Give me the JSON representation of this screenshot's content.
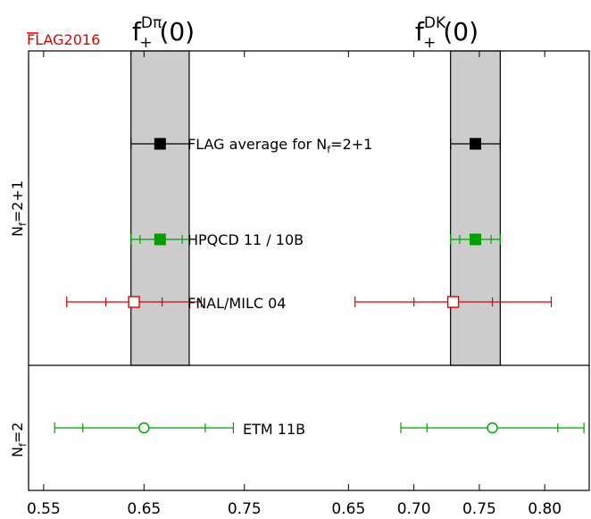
{
  "flag_tag": "FLAG2016",
  "chart_data": [
    {
      "type": "scatter",
      "title": "f+Dπ(0)",
      "title_parts": {
        "main": "f",
        "sup": "Dπ",
        "sub": "+",
        "arg": "(0)"
      },
      "xlim": [
        0.535,
        0.8
      ],
      "x_ticks": [
        0.55,
        0.65,
        0.75
      ],
      "x_tick_labels": [
        "0.55",
        "0.65",
        "0.75"
      ],
      "band": {
        "center": 0.666,
        "low": 0.637,
        "high": 0.695,
        "color": "#cccccc"
      },
      "series": [
        {
          "name": "FLAG average for Nf=2+1",
          "group": "Nf=2+1",
          "x": 0.666,
          "stat_err": [
            0.637,
            0.695
          ],
          "tot_err": [
            0.637,
            0.695
          ],
          "marker": "filled-square",
          "color": "#000000"
        },
        {
          "name": "HPQCD 11 / 10B",
          "group": "Nf=2+1",
          "x": 0.666,
          "stat_err": [
            0.646,
            0.688
          ],
          "tot_err": [
            0.637,
            0.695
          ],
          "marker": "filled-square",
          "color": "#00a000"
        },
        {
          "name": "FNAL/MILC 04",
          "group": "Nf=2+1",
          "x": 0.64,
          "stat_err": [
            0.612,
            0.668
          ],
          "tot_err": [
            0.573,
            0.707
          ],
          "marker": "open-square",
          "color": "#e00000"
        },
        {
          "name": "ETM 11B",
          "group": "Nf=2",
          "x": 0.65,
          "stat_err": [
            0.589,
            0.711
          ],
          "tot_err": [
            0.561,
            0.739
          ],
          "marker": "open-circle",
          "color": "#00a000"
        }
      ]
    },
    {
      "type": "scatter",
      "title": "f+DK(0)",
      "title_parts": {
        "main": "f",
        "sup": "DK",
        "sub": "+",
        "arg": "(0)"
      },
      "xlim": [
        0.617,
        0.834
      ],
      "x_ticks": [
        0.65,
        0.7,
        0.75,
        0.8
      ],
      "x_tick_labels": [
        "0.65",
        "0.70",
        "0.75",
        "0.80"
      ],
      "band": {
        "center": 0.747,
        "low": 0.728,
        "high": 0.766,
        "color": "#cccccc"
      },
      "series": [
        {
          "name": "FLAG average for Nf=2+1",
          "group": "Nf=2+1",
          "x": 0.747,
          "stat_err": [
            0.728,
            0.766
          ],
          "tot_err": [
            0.728,
            0.766
          ],
          "marker": "filled-square",
          "color": "#000000"
        },
        {
          "name": "HPQCD 11 / 10B",
          "group": "Nf=2+1",
          "x": 0.747,
          "stat_err": [
            0.735,
            0.759
          ],
          "tot_err": [
            0.728,
            0.766
          ],
          "marker": "filled-square",
          "color": "#00a000"
        },
        {
          "name": "FNAL/MILC 04",
          "group": "Nf=2+1",
          "x": 0.73,
          "stat_err": [
            0.7,
            0.76
          ],
          "tot_err": [
            0.655,
            0.805
          ],
          "marker": "open-square",
          "color": "#e00000"
        },
        {
          "name": "ETM 11B",
          "group": "Nf=2",
          "x": 0.76,
          "stat_err": [
            0.71,
            0.81
          ],
          "tot_err": [
            0.69,
            0.83
          ],
          "marker": "open-circle",
          "color": "#00a000"
        }
      ]
    }
  ],
  "entry_labels": [
    {
      "text": "FLAG average for N",
      "sub": "f",
      "tail": "=2+1"
    },
    {
      "text": "HPQCD 11 / 10B"
    },
    {
      "text": "FNAL/MILC 04"
    },
    {
      "text": "ETM 11B"
    }
  ],
  "groups": [
    {
      "label": "N",
      "sub": "f",
      "tail": "=2+1"
    },
    {
      "label": "N",
      "sub": "f",
      "tail": "=2"
    }
  ]
}
